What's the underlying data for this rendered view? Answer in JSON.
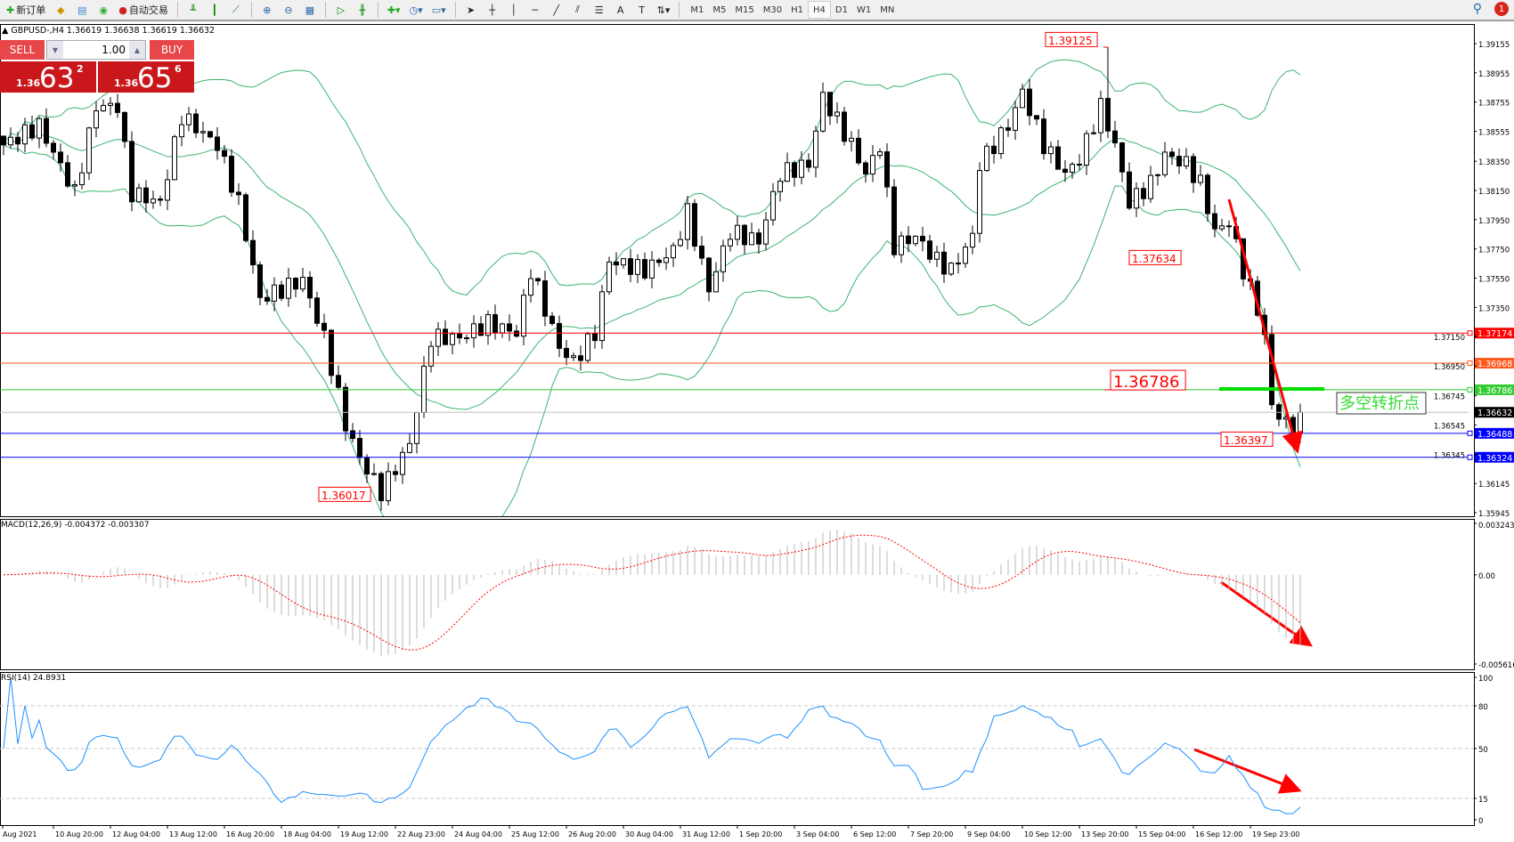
{
  "toolbar": {
    "new_order": "新订单",
    "auto_trading": "自动交易",
    "timeframes": [
      "M1",
      "M5",
      "M15",
      "M30",
      "H1",
      "H4",
      "D1",
      "W1",
      "MN"
    ],
    "active_timeframe": "H4",
    "notifications": "1"
  },
  "header": {
    "symbol": "GBPUSD-,H4",
    "ohlc": "1.36619 1.36638 1.36619 1.36632"
  },
  "trade_panel": {
    "sell_label": "SELL",
    "buy_label": "BUY",
    "lot": "1.00",
    "bid": {
      "prefix": "1.36",
      "big": "63",
      "pip": "2"
    },
    "ask": {
      "prefix": "1.36",
      "big": "65",
      "pip": "6"
    }
  },
  "colors": {
    "up_down_candle": "#000000",
    "bands": "#3cb371",
    "rsi": "#1e90ff",
    "macd_signal": "#ff0000",
    "annotation": "#ff0000",
    "pivot": "#00e000"
  },
  "chart_data": [
    {
      "type": "candlestick",
      "symbol": "GBPUSD",
      "timeframe": "H4",
      "indicator": "Bollinger Bands",
      "ylim": [
        1.35945,
        1.39155
      ],
      "y_ticks": [
        "1.39155",
        "1.38955",
        "1.38755",
        "1.38555",
        "1.38350",
        "1.38150",
        "1.37950",
        "1.37750",
        "1.37550",
        "1.37350",
        "1.37150",
        "1.36950",
        "1.36745",
        "1.36545",
        "1.36345",
        "1.36145",
        "1.35945"
      ],
      "x_ticks": [
        "Aug 2021",
        "10 Aug 20:00",
        "12 Aug 04:00",
        "13 Aug 12:00",
        "16 Aug 20:00",
        "18 Aug 04:00",
        "19 Aug 12:00",
        "22 Aug 23:00",
        "24 Aug 04:00",
        "25 Aug 12:00",
        "26 Aug 20:00",
        "30 Aug 04:00",
        "31 Aug 12:00",
        "1 Sep 20:00",
        "3 Sep 04:00",
        "6 Sep 12:00",
        "7 Sep 20:00",
        "9 Sep 04:00",
        "10 Sep 12:00",
        "13 Sep 20:00",
        "15 Sep 04:00",
        "16 Sep 12:00",
        "19 Sep 23:00"
      ],
      "close_path": [
        [
          0,
          1.38462
        ],
        [
          5,
          1.38594
        ],
        [
          10,
          1.38132
        ],
        [
          13,
          1.38726
        ],
        [
          16,
          1.38726
        ],
        [
          18,
          1.38132
        ],
        [
          22,
          1.38066
        ],
        [
          25,
          1.3866
        ],
        [
          30,
          1.38462
        ],
        [
          33,
          1.38066
        ],
        [
          36,
          1.37406
        ],
        [
          39,
          1.37472
        ],
        [
          42,
          1.37538
        ],
        [
          45,
          1.37142
        ],
        [
          48,
          1.36548
        ],
        [
          50,
          1.36317
        ],
        [
          53,
          1.36086
        ],
        [
          57,
          1.36416
        ],
        [
          60,
          1.37142
        ],
        [
          64,
          1.37142
        ],
        [
          68,
          1.37241
        ],
        [
          72,
          1.37175
        ],
        [
          74,
          1.37604
        ],
        [
          78,
          1.37076
        ],
        [
          80,
          1.36977
        ],
        [
          83,
          1.37175
        ],
        [
          85,
          1.3767
        ],
        [
          90,
          1.37604
        ],
        [
          94,
          1.37736
        ],
        [
          96,
          1.38
        ],
        [
          99,
          1.37472
        ],
        [
          102,
          1.37868
        ],
        [
          106,
          1.37802
        ],
        [
          109,
          1.38264
        ],
        [
          113,
          1.3833
        ],
        [
          115,
          1.38792
        ],
        [
          119,
          1.38462
        ],
        [
          121,
          1.38264
        ],
        [
          123,
          1.38462
        ],
        [
          125,
          1.37769
        ],
        [
          128,
          1.37835
        ],
        [
          131,
          1.3767
        ],
        [
          133,
          1.37604
        ],
        [
          136,
          1.37835
        ],
        [
          137,
          1.3833
        ],
        [
          141,
          1.38594
        ],
        [
          143,
          1.38825
        ],
        [
          146,
          1.38462
        ],
        [
          149,
          1.38264
        ],
        [
          151,
          1.38363
        ],
        [
          154,
          1.38726
        ],
        [
          156,
          1.38462
        ],
        [
          158,
          1.38066
        ],
        [
          161,
          1.38198
        ],
        [
          163,
          1.38396
        ],
        [
          166,
          1.3833
        ],
        [
          168,
          1.38198
        ],
        [
          170,
          1.37868
        ],
        [
          172,
          1.37934
        ],
        [
          174,
          1.37604
        ],
        [
          176,
          1.3734
        ],
        [
          177,
          1.37142
        ],
        [
          178,
          1.3668
        ],
        [
          180,
          1.36548
        ],
        [
          181,
          1.36548
        ],
        [
          182,
          1.36632
        ]
      ],
      "horizontal_lines": [
        {
          "price": "1.37174",
          "color": "#ff0000"
        },
        {
          "price": "1.36968",
          "color": "#ff5a1e"
        },
        {
          "price": "1.36786",
          "color": "#33cc33"
        },
        {
          "price": "1.36632",
          "color": "#000000"
        },
        {
          "price": "1.36488",
          "color": "#0000ff"
        },
        {
          "price": "1.36324",
          "color": "#0000ff"
        }
      ],
      "annotations": [
        "1.39125",
        "1.37634",
        "1.36786",
        "1.36397",
        "1.36017"
      ],
      "pivot_text": "多空转折点"
    },
    {
      "type": "histogram",
      "indicator": "MACD",
      "label": "MACD(12,26,9) -0.004372 -0.003307",
      "ylim": [
        -0.005616,
        0.003243
      ],
      "y_ticks": [
        "0.003243",
        "0.00",
        "-0.005616"
      ]
    },
    {
      "type": "line",
      "indicator": "RSI",
      "label": "RSI(14) 24.8931",
      "ylim": [
        0,
        100
      ],
      "y_ticks": [
        "100",
        "80",
        "50",
        "15",
        "0"
      ]
    }
  ]
}
